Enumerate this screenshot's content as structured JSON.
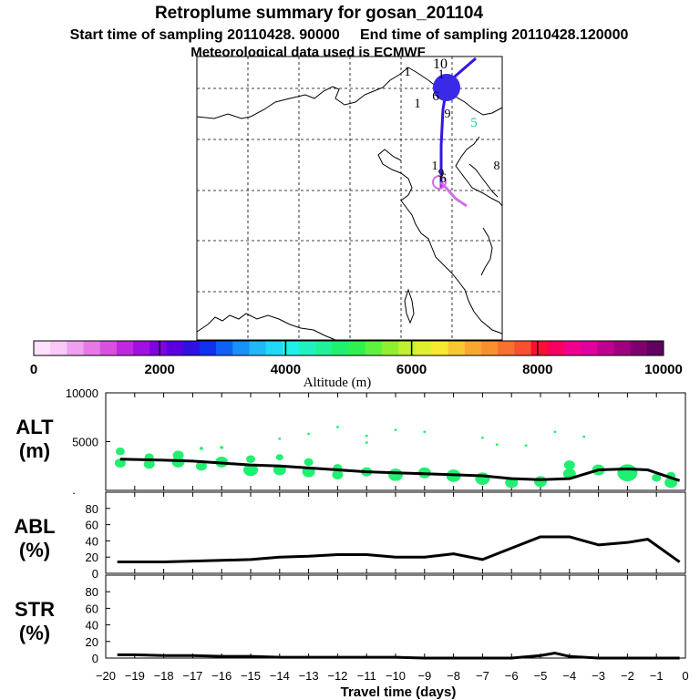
{
  "header": {
    "title": "Retroplume summary for gosan_201104",
    "line2": "Start time of sampling 20110428. 90000     End time of sampling 20110428.120000",
    "line3": "Meteorological data used is ECMWF"
  },
  "colorbar": {
    "colors": [
      "#ffe0ff",
      "#f8c8f8",
      "#f0a0f0",
      "#e878e8",
      "#d850e0",
      "#c028e0",
      "#a010e0",
      "#8000e0",
      "#5a00e0",
      "#3010e0",
      "#1030f0",
      "#1060f8",
      "#1890f8",
      "#20b8f8",
      "#20d8f8",
      "#20f0e8",
      "#20f0c0",
      "#20f098",
      "#20f070",
      "#30f050",
      "#60f040",
      "#90f030",
      "#c0f030",
      "#e0f030",
      "#f8e830",
      "#f8c830",
      "#f8a830",
      "#f89030",
      "#f87030",
      "#f85030",
      "#f81030",
      "#f80060",
      "#f00090",
      "#e000a0",
      "#c00090",
      "#a00080",
      "#800070",
      "#600060"
    ],
    "ticks": [
      "0",
      "2000",
      "4000",
      "6000",
      "8000",
      "10000"
    ],
    "label": "Altitude (m)"
  },
  "map": {
    "labels": [
      "10",
      "1",
      "1",
      "1",
      "6",
      "5",
      "9",
      "8",
      "1",
      "6",
      "9"
    ],
    "segment_colors": [
      "#3018e0",
      "#a020f0",
      "#d070e0"
    ]
  },
  "panels": {
    "alt": {
      "label_top": "ALT",
      "label_bottom": "(m)",
      "ticks": [
        "10000",
        "5000"
      ],
      "zero": "."
    },
    "abl": {
      "label_top": "ABL",
      "label_bottom": "(%)",
      "ticks": [
        "80",
        "60",
        "40",
        "20",
        "0"
      ]
    },
    "str": {
      "label_top": "STR",
      "label_bottom": "(%)",
      "ticks": [
        "80",
        "60",
        "40",
        "20",
        "0"
      ]
    }
  },
  "xaxis": {
    "label": "Travel time (days)",
    "ticks": [
      "−20",
      "−19",
      "−18",
      "−17",
      "−16",
      "−15",
      "−14",
      "−13",
      "−12",
      "−11",
      "−10",
      "−9",
      "−8",
      "−7",
      "−6",
      "−5",
      "−4",
      "−3",
      "−2",
      "−1",
      "0"
    ]
  },
  "chart_data": [
    {
      "type": "line",
      "title": "ALT",
      "ylabel": "ALT (m)",
      "ylim": [
        0,
        10000
      ],
      "x": [
        -19.5,
        -18,
        -17,
        -16,
        -15,
        -14,
        -13,
        -12,
        -11,
        -10,
        -9,
        -8,
        -7,
        -6,
        -5,
        -4,
        -3,
        -2,
        -1.3,
        -0.2
      ],
      "values": [
        3200,
        3100,
        3000,
        2800,
        2600,
        2500,
        2300,
        2100,
        1900,
        1800,
        1700,
        1600,
        1500,
        1200,
        1100,
        1200,
        2100,
        2200,
        2100,
        1000
      ],
      "plume_dots": [
        {
          "x": -19.5,
          "y": 4000,
          "r": 5
        },
        {
          "x": -19.5,
          "y": 2800,
          "r": 6
        },
        {
          "x": -18.5,
          "y": 3400,
          "r": 5
        },
        {
          "x": -18.5,
          "y": 2700,
          "r": 6
        },
        {
          "x": -17.5,
          "y": 3600,
          "r": 6
        },
        {
          "x": -17.5,
          "y": 2900,
          "r": 7
        },
        {
          "x": -16.7,
          "y": 2500,
          "r": 6
        },
        {
          "x": -16.7,
          "y": 4300,
          "r": 2
        },
        {
          "x": -16,
          "y": 2900,
          "r": 7
        },
        {
          "x": -16,
          "y": 4400,
          "r": 2
        },
        {
          "x": -15,
          "y": 2100,
          "r": 8
        },
        {
          "x": -15,
          "y": 3200,
          "r": 5
        },
        {
          "x": -14,
          "y": 2100,
          "r": 7
        },
        {
          "x": -14,
          "y": 3400,
          "r": 4
        },
        {
          "x": -14,
          "y": 5300,
          "r": 1.5
        },
        {
          "x": -13,
          "y": 1900,
          "r": 7
        },
        {
          "x": -13,
          "y": 2900,
          "r": 5
        },
        {
          "x": -13,
          "y": 5800,
          "r": 1.5
        },
        {
          "x": -12,
          "y": 1600,
          "r": 6
        },
        {
          "x": -12,
          "y": 2300,
          "r": 5
        },
        {
          "x": -12,
          "y": 6500,
          "r": 1.5
        },
        {
          "x": -11,
          "y": 1900,
          "r": 6
        },
        {
          "x": -11,
          "y": 5600,
          "r": 1.5
        },
        {
          "x": -10,
          "y": 1600,
          "r": 8
        },
        {
          "x": -9,
          "y": 1800,
          "r": 7
        },
        {
          "x": -8,
          "y": 1500,
          "r": 8
        },
        {
          "x": -7,
          "y": 1200,
          "r": 8
        },
        {
          "x": -6,
          "y": 800,
          "r": 7
        },
        {
          "x": -5,
          "y": 900,
          "r": 7
        },
        {
          "x": -4.5,
          "y": 6000,
          "r": 1.5
        },
        {
          "x": -4,
          "y": 1700,
          "r": 7
        },
        {
          "x": -4,
          "y": 2600,
          "r": 6
        },
        {
          "x": -3,
          "y": 2100,
          "r": 7
        },
        {
          "x": -2,
          "y": 1800,
          "r": 11
        },
        {
          "x": -1,
          "y": 1300,
          "r": 5
        },
        {
          "x": -0.5,
          "y": 1500,
          "r": 5
        },
        {
          "x": -0.5,
          "y": 800,
          "r": 7
        },
        {
          "x": -3.5,
          "y": 5500,
          "r": 1.5
        },
        {
          "x": -7,
          "y": 5400,
          "r": 1.5
        },
        {
          "x": -9,
          "y": 6000,
          "r": 1.5
        },
        {
          "x": -10,
          "y": 6200,
          "r": 1.5
        },
        {
          "x": -11,
          "y": 4900,
          "r": 1.5
        },
        {
          "x": -6.5,
          "y": 4700,
          "r": 1.5
        },
        {
          "x": -5.5,
          "y": 4600,
          "r": 1.5
        }
      ]
    },
    {
      "type": "line",
      "title": "ABL",
      "ylabel": "ABL (%)",
      "ylim": [
        0,
        100
      ],
      "x": [
        -19.6,
        -18,
        -17,
        -16,
        -15,
        -14,
        -13,
        -12,
        -11,
        -10,
        -9,
        -8,
        -7,
        -6,
        -5,
        -4,
        -3,
        -2,
        -1.3,
        -0.2
      ],
      "values": [
        14,
        14,
        15,
        16,
        17,
        20,
        21,
        23,
        23,
        20,
        20,
        24,
        17,
        31,
        45,
        45,
        35,
        38,
        42,
        14
      ]
    },
    {
      "type": "line",
      "title": "STR",
      "ylabel": "STR (%)",
      "ylim": [
        0,
        100
      ],
      "x": [
        -19.6,
        -19,
        -18,
        -17,
        -16,
        -15,
        -14,
        -13,
        -12,
        -11,
        -10,
        -9,
        -8,
        -7,
        -6,
        -5,
        -4.5,
        -4,
        -3,
        -2,
        -1,
        -0.2
      ],
      "values": [
        4,
        4,
        3,
        3,
        2,
        2,
        1,
        1,
        1,
        1,
        1,
        0,
        0,
        0,
        0,
        3,
        6,
        2,
        0,
        0,
        0,
        0
      ]
    }
  ]
}
